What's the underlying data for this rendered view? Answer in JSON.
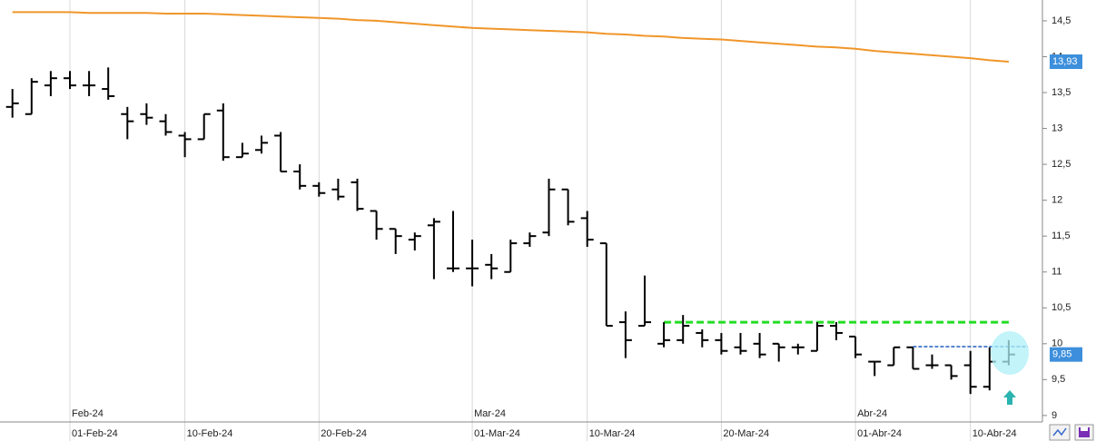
{
  "chart_data": {
    "type": "ohlc",
    "color": "#000000",
    "categories": [
      null,
      null,
      null,
      "01-Feb-24",
      null,
      null,
      null,
      null,
      null,
      "10-Feb-24",
      null,
      null,
      null,
      null,
      null,
      null,
      "20-Feb-24",
      null,
      null,
      null,
      null,
      null,
      null,
      null,
      "01-Mar-24",
      null,
      null,
      null,
      null,
      null,
      "10-Mar-24",
      null,
      null,
      null,
      null,
      null,
      null,
      "20-Mar-24",
      null,
      null,
      null,
      null,
      null,
      null,
      "01-Abr-24",
      null,
      null,
      null,
      null,
      null,
      "10-Abr-24",
      null,
      null
    ],
    "month_labels": [
      null,
      null,
      null,
      "Feb-24",
      null,
      null,
      null,
      null,
      null,
      null,
      null,
      null,
      null,
      null,
      null,
      null,
      null,
      null,
      null,
      null,
      null,
      null,
      null,
      null,
      "Mar-24",
      null,
      null,
      null,
      null,
      null,
      null,
      null,
      null,
      null,
      null,
      null,
      null,
      null,
      null,
      null,
      null,
      null,
      null,
      null,
      "Abr-24",
      null,
      null,
      null,
      null,
      null,
      null,
      null,
      null
    ],
    "open": [
      13.3,
      13.2,
      13.6,
      13.7,
      13.6,
      13.55,
      13.2,
      13.2,
      13.1,
      12.9,
      12.85,
      13.25,
      12.6,
      12.7,
      12.9,
      12.4,
      12.2,
      12.15,
      12.25,
      11.85,
      11.6,
      11.45,
      11.65,
      11.05,
      11.05,
      11.1,
      11.0,
      11.4,
      11.55,
      12.15,
      11.75,
      11.4,
      10.3,
      10.25,
      10.0,
      10.05,
      10.15,
      10.05,
      9.95,
      10.0,
      10.0,
      9.95,
      9.9,
      10.25,
      10.1,
      9.75,
      9.7,
      9.95,
      9.7,
      9.7,
      9.7,
      9.4,
      9.75
    ],
    "high": [
      13.55,
      13.7,
      13.8,
      13.8,
      13.8,
      13.85,
      13.3,
      13.35,
      13.2,
      12.95,
      13.2,
      13.35,
      12.8,
      12.9,
      12.95,
      12.5,
      12.25,
      12.3,
      12.3,
      11.85,
      11.6,
      11.55,
      11.75,
      11.85,
      11.45,
      11.25,
      11.45,
      11.55,
      12.3,
      12.15,
      11.85,
      11.4,
      10.45,
      10.95,
      10.3,
      10.4,
      10.2,
      10.15,
      10.15,
      10.15,
      10.0,
      10.0,
      10.3,
      10.3,
      10.1,
      9.75,
      9.95,
      9.95,
      9.85,
      9.7,
      9.9,
      9.95,
      10.05
    ],
    "low": [
      13.15,
      13.2,
      13.45,
      13.55,
      13.45,
      13.4,
      12.85,
      13.05,
      12.9,
      12.6,
      12.85,
      12.55,
      12.6,
      12.65,
      12.4,
      12.15,
      12.05,
      12.0,
      11.85,
      11.45,
      11.25,
      11.3,
      10.9,
      11.0,
      10.8,
      10.9,
      11.0,
      11.35,
      11.5,
      11.65,
      11.35,
      10.25,
      9.8,
      10.25,
      9.95,
      10.0,
      9.95,
      9.85,
      9.85,
      9.8,
      9.75,
      9.85,
      9.9,
      10.05,
      9.8,
      9.55,
      9.7,
      9.65,
      9.65,
      9.5,
      9.3,
      9.35,
      9.7
    ],
    "close": [
      13.35,
      13.65,
      13.7,
      13.6,
      13.6,
      13.45,
      13.1,
      13.15,
      12.95,
      12.85,
      13.2,
      12.6,
      12.65,
      12.8,
      12.4,
      12.2,
      12.1,
      12.05,
      11.88,
      11.6,
      11.5,
      11.5,
      11.7,
      11.05,
      11.05,
      11.05,
      11.4,
      11.5,
      12.15,
      11.7,
      11.45,
      10.25,
      10.05,
      10.3,
      10.05,
      10.25,
      10.05,
      9.9,
      9.9,
      9.85,
      9.95,
      9.95,
      10.25,
      10.15,
      9.85,
      9.75,
      9.95,
      9.65,
      9.7,
      9.55,
      9.4,
      9.75,
      9.85
    ],
    "overlays": [
      {
        "type": "line",
        "color": "#f0962a",
        "values": [
          14.62,
          14.62,
          14.62,
          14.62,
          14.61,
          14.61,
          14.61,
          14.61,
          14.6,
          14.6,
          14.6,
          14.59,
          14.58,
          14.57,
          14.56,
          14.55,
          14.54,
          14.53,
          14.51,
          14.5,
          14.48,
          14.46,
          14.44,
          14.42,
          14.4,
          14.39,
          14.38,
          14.37,
          14.36,
          14.35,
          14.34,
          14.32,
          14.31,
          14.29,
          14.28,
          14.26,
          14.25,
          14.24,
          14.22,
          14.2,
          14.18,
          14.16,
          14.14,
          14.13,
          14.11,
          14.08,
          14.06,
          14.04,
          14.02,
          14.0,
          13.98,
          13.95,
          13.93
        ]
      }
    ],
    "last_values": [
      {
        "value": 13.93,
        "label": "13,93",
        "color": "#3d8fdc"
      },
      {
        "value": 9.85,
        "label": "9,85",
        "color": "#3d8fdc"
      }
    ],
    "levels": [
      {
        "value": 10.3,
        "color": "#22dd22",
        "start": 34,
        "end": 52
      },
      {
        "value": 9.96,
        "color": "#1f5fbf",
        "start": 47,
        "end": 53
      }
    ],
    "ylim": [
      8.91,
      14.79
    ],
    "yticks": [
      9,
      {
        "value": 9.5,
        "label": "9,5"
      },
      10,
      {
        "value": 10.5,
        "label": "10,5"
      },
      11,
      {
        "value": 11.5,
        "label": "11,5"
      },
      12,
      {
        "value": 12.5,
        "label": "12,5"
      },
      13,
      {
        "value": 13.5,
        "label": "13,5"
      },
      14,
      {
        "value": 14.5,
        "label": "14,5"
      }
    ],
    "grid": "x"
  }
}
